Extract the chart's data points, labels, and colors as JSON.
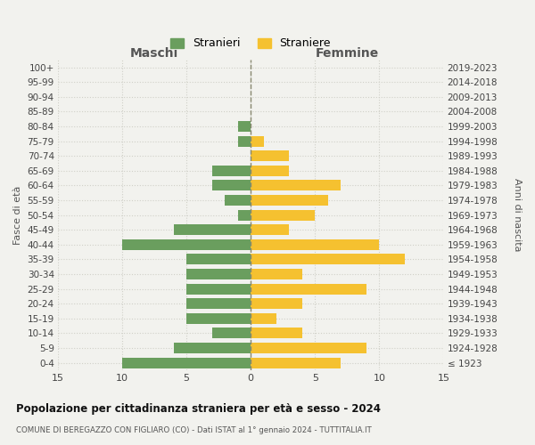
{
  "age_groups": [
    "100+",
    "95-99",
    "90-94",
    "85-89",
    "80-84",
    "75-79",
    "70-74",
    "65-69",
    "60-64",
    "55-59",
    "50-54",
    "45-49",
    "40-44",
    "35-39",
    "30-34",
    "25-29",
    "20-24",
    "15-19",
    "10-14",
    "5-9",
    "0-4"
  ],
  "birth_years": [
    "≤ 1923",
    "1924-1928",
    "1929-1933",
    "1934-1938",
    "1939-1943",
    "1944-1948",
    "1949-1953",
    "1954-1958",
    "1959-1963",
    "1964-1968",
    "1969-1973",
    "1974-1978",
    "1979-1983",
    "1984-1988",
    "1989-1993",
    "1994-1998",
    "1999-2003",
    "2004-2008",
    "2009-2013",
    "2014-2018",
    "2019-2023"
  ],
  "males": [
    0,
    0,
    0,
    0,
    1,
    1,
    0,
    3,
    3,
    2,
    1,
    6,
    10,
    5,
    5,
    5,
    5,
    5,
    3,
    6,
    10
  ],
  "females": [
    0,
    0,
    0,
    0,
    0,
    1,
    3,
    3,
    7,
    6,
    5,
    3,
    10,
    12,
    4,
    9,
    4,
    2,
    4,
    9,
    7
  ],
  "male_color": "#6a9e5e",
  "female_color": "#f5c130",
  "background_color": "#f2f2ee",
  "title": "Popolazione per cittadinanza straniera per età e sesso - 2024",
  "subtitle": "COMUNE DI BEREGAZZO CON FIGLIARO (CO) - Dati ISTAT al 1° gennaio 2024 - TUTTITALIA.IT",
  "xlabel_left": "Maschi",
  "xlabel_right": "Femmine",
  "ylabel": "Fasce di età",
  "ylabel_right": "Anni di nascita",
  "legend_male": "Stranieri",
  "legend_female": "Straniere",
  "xlim": 15,
  "center_line_color": "#888870",
  "grid_color": "#d0d0c8"
}
